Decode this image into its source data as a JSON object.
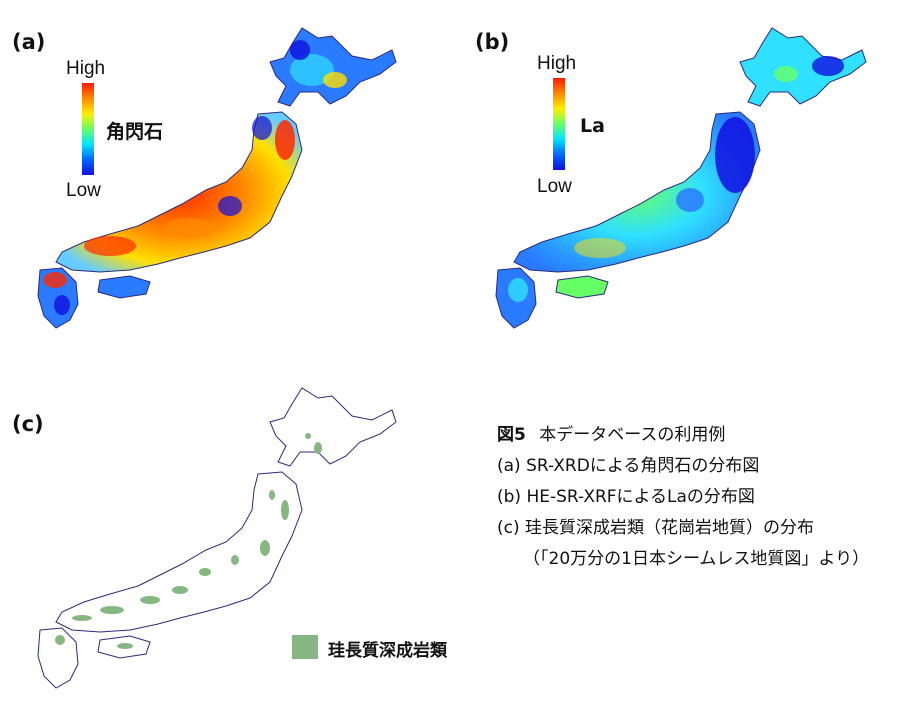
{
  "panel_a": {
    "letter": "(a)",
    "colorbar": {
      "high": "High",
      "low": "Low",
      "title": "角閃石"
    }
  },
  "panel_b": {
    "letter": "(b)",
    "colorbar": {
      "high": "High",
      "low": "Low",
      "title": "La"
    }
  },
  "panel_c": {
    "letter": "(c)",
    "legend_label": "珪長質深成岩類",
    "legend_color": "#86b783"
  },
  "caption": {
    "figure_label": "図5",
    "figure_title": "本データベースの利用例",
    "items": [
      "(a) SR-XRDによる角閃石の分布図",
      "(b) HE-SR-XRFによるLaの分布図",
      "(c) 珪長質深成岩類（花崗岩地質）の分布",
      "（「20万分の1日本シームレス地質図」より）"
    ]
  },
  "colors": {
    "high": "#ff1a00",
    "low": "#1010e0",
    "outline": "#2a2a80"
  }
}
